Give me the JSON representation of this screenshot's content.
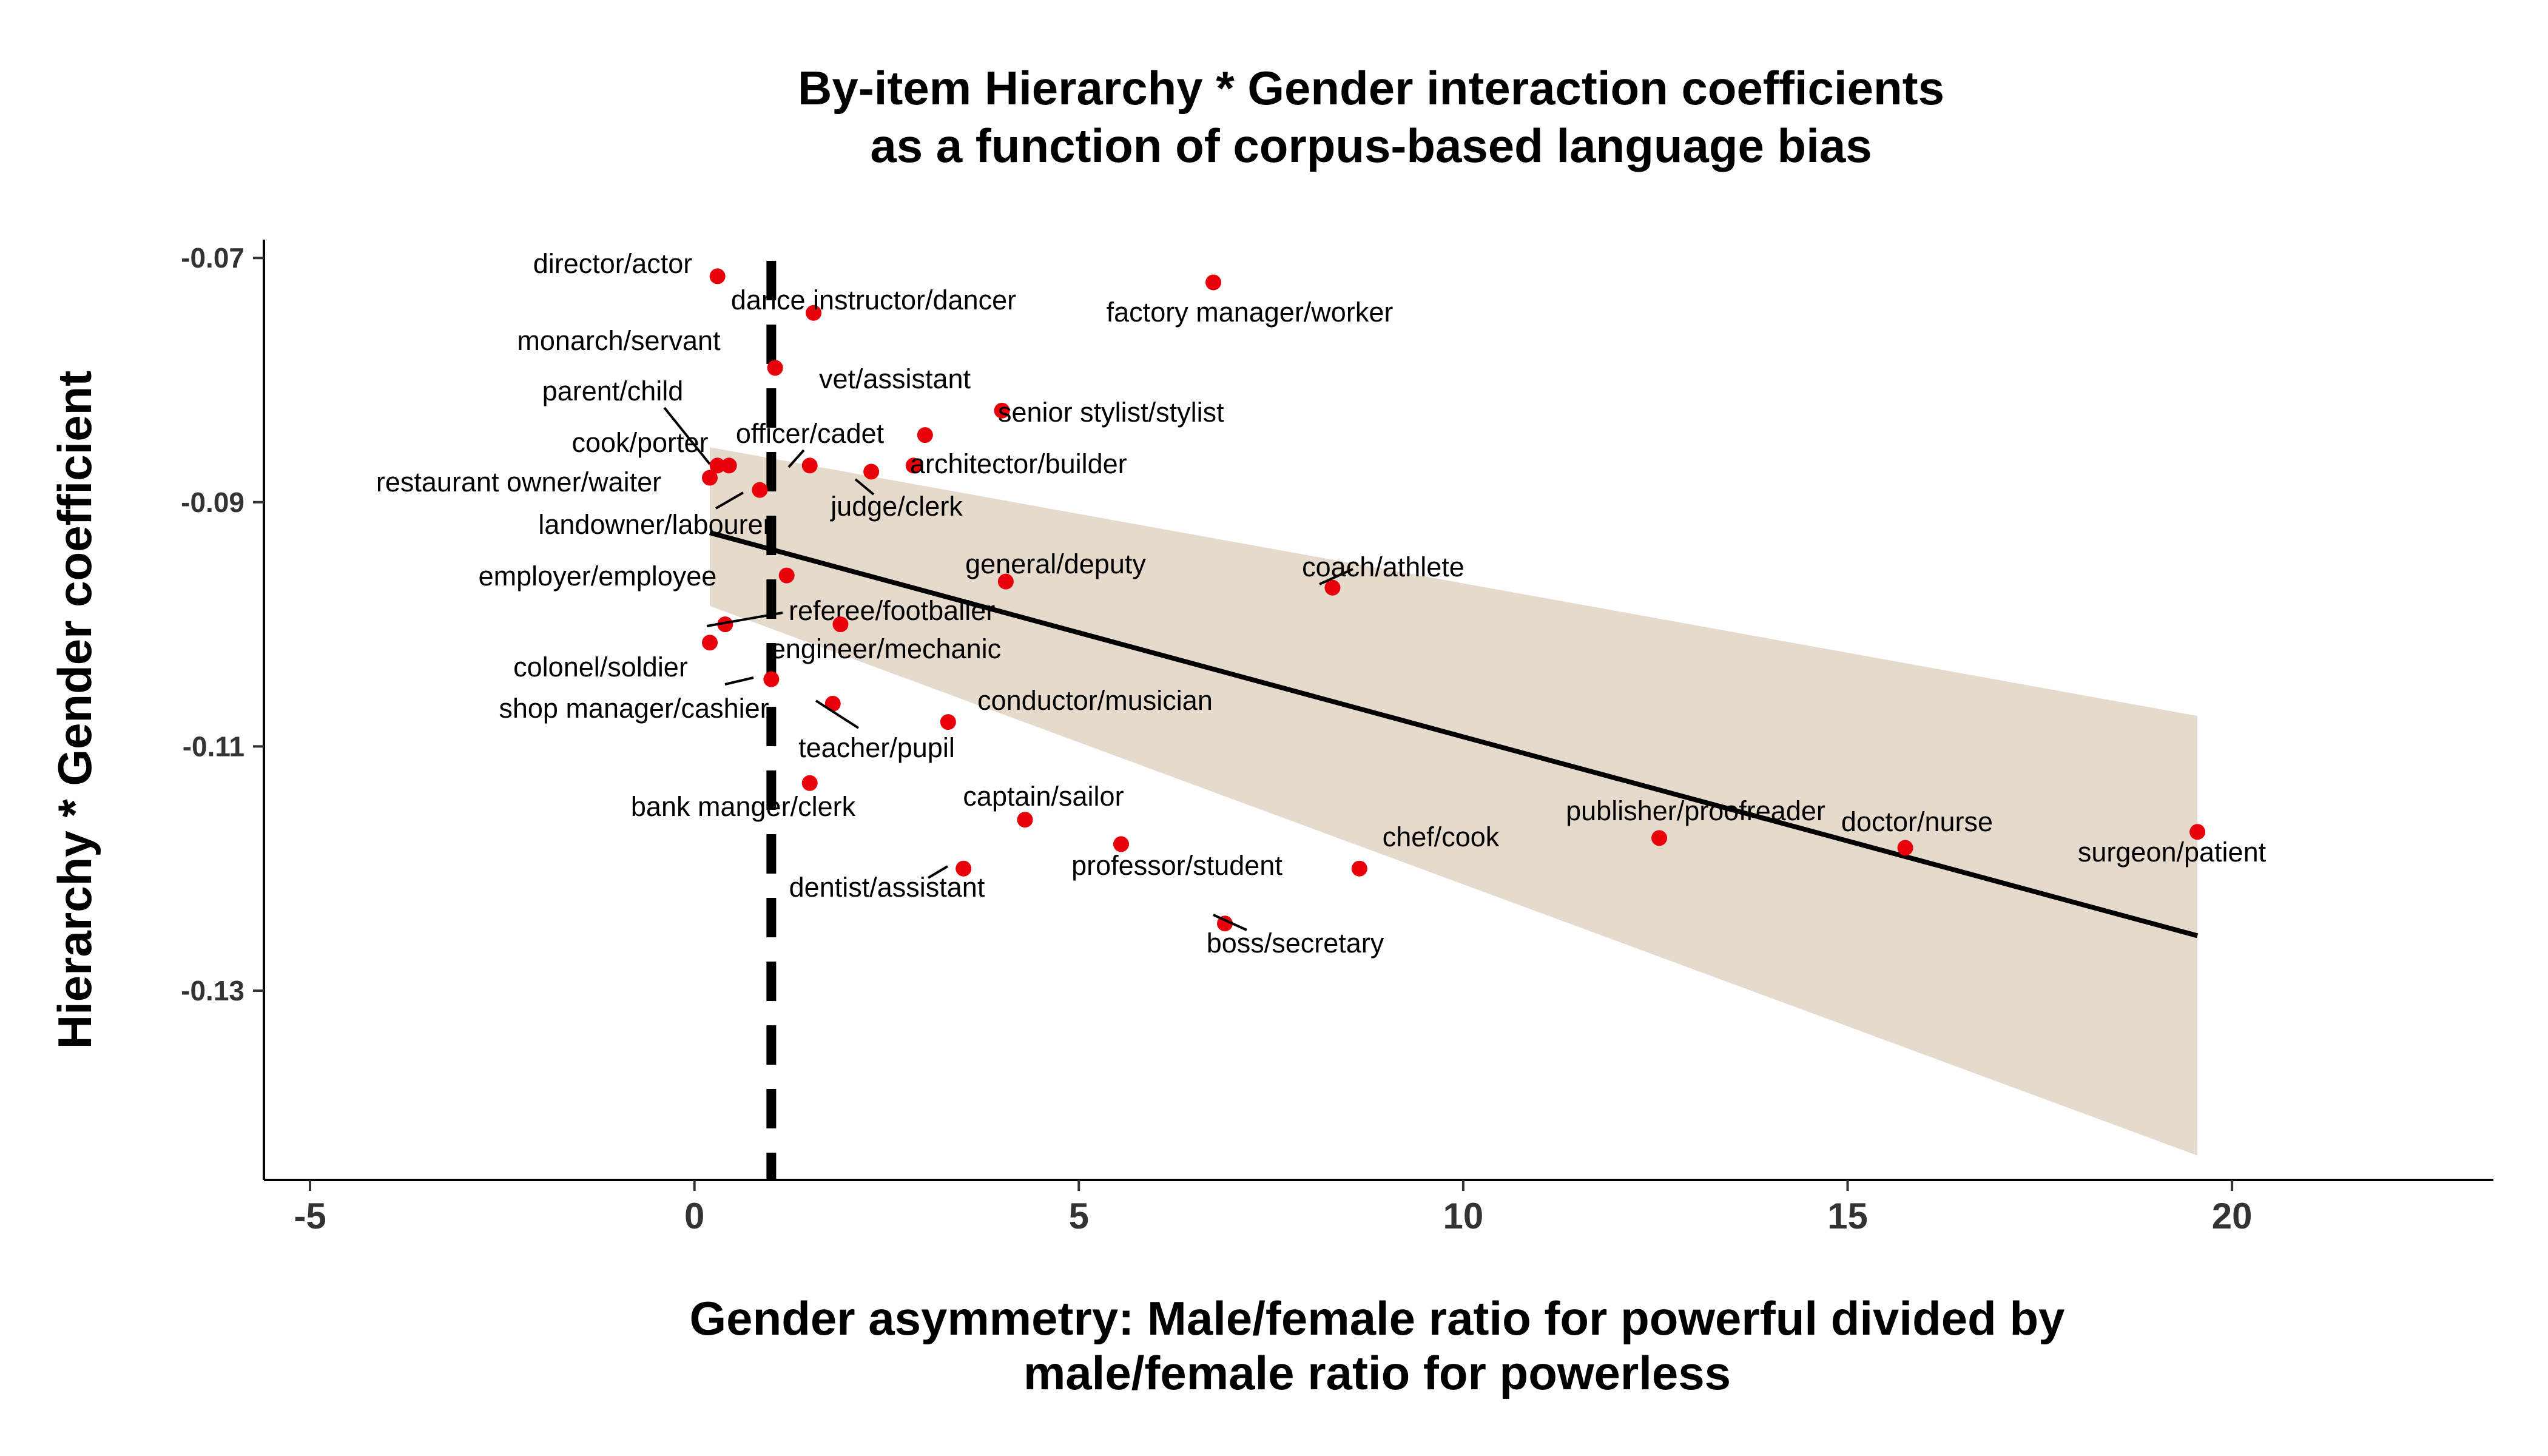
{
  "chart_data": {
    "type": "scatter",
    "title": [
      "By-item Hierarchy * Gender interaction coefficients",
      "as a function of corpus-based language bias"
    ],
    "xlabel": [
      "Gender asymmetry: Male/female ratio for powerful divided by",
      "male/female ratio for powerless"
    ],
    "ylabel": "Hierarchy * Gender coefficient",
    "xlim": [
      -5.6,
      23.4
    ],
    "ylim": [
      -0.1455,
      -0.0685
    ],
    "xticks": [
      -5,
      0,
      5,
      10,
      15,
      20
    ],
    "xtick_labels": [
      "-5",
      "0",
      "5",
      "10",
      "15",
      "20"
    ],
    "yticks": [
      -0.07,
      -0.09,
      -0.11,
      -0.13
    ],
    "ytick_labels": [
      "-0.07",
      "-0.09",
      "-0.11",
      "-0.13"
    ],
    "grid": false,
    "point_color": "#e8000b",
    "ribbon_color": "#e6dacd",
    "reference_line": {
      "x": 1,
      "style": "dashed",
      "color": "#000000"
    },
    "fit_line": {
      "x": [
        0.2,
        19.55
      ],
      "y": [
        -0.0925,
        -0.1255
      ],
      "color": "#000000"
    },
    "ribbon": {
      "x": [
        0.2,
        19.55
      ],
      "upper": [
        -0.0855,
        -0.1075
      ],
      "lower": [
        -0.0985,
        -0.1435
      ]
    },
    "points": [
      {
        "label": "director/actor",
        "x": 0.3,
        "y": -0.0715
      },
      {
        "label": "dance instructor/dancer",
        "x": 1.55,
        "y": -0.0745
      },
      {
        "label": "factory manager/worker",
        "x": 6.75,
        "y": -0.072
      },
      {
        "label": "monarch/servant",
        "x": 1.05,
        "y": -0.079
      },
      {
        "label": "vet/assistant",
        "x": 3.0,
        "y": -0.0845
      },
      {
        "label": "senior stylist/stylist",
        "x": 4.0,
        "y": -0.0825
      },
      {
        "label": "parent/child",
        "x": 0.45,
        "y": -0.087
      },
      {
        "label": "cook/porter",
        "x": 0.3,
        "y": -0.087
      },
      {
        "label": "officer/cadet",
        "x": 1.5,
        "y": -0.087
      },
      {
        "label": "architector/builder",
        "x": 2.85,
        "y": -0.087
      },
      {
        "label": "judge/clerk",
        "x": 2.3,
        "y": -0.0875
      },
      {
        "label": "restaurant owner/waiter",
        "x": 0.2,
        "y": -0.088
      },
      {
        "label": "landowner/labourer",
        "x": 0.85,
        "y": -0.089
      },
      {
        "label": "general/deputy",
        "x": 4.05,
        "y": -0.0965
      },
      {
        "label": "coach/athlete",
        "x": 8.3,
        "y": -0.097
      },
      {
        "label": "employer/employee",
        "x": 1.2,
        "y": -0.096
      },
      {
        "label": "referee/footballer",
        "x": 0.4,
        "y": -0.1
      },
      {
        "label": "engineer/mechanic",
        "x": 1.9,
        "y": -0.1
      },
      {
        "label": "colonel/soldier",
        "x": 0.2,
        "y": -0.1015
      },
      {
        "label": "shop manager/cashier",
        "x": 1.0,
        "y": -0.1045
      },
      {
        "label": "teacher/pupil",
        "x": 1.8,
        "y": -0.1065
      },
      {
        "label": "conductor/musician",
        "x": 3.3,
        "y": -0.108
      },
      {
        "label": "bank manger/clerk",
        "x": 1.5,
        "y": -0.113
      },
      {
        "label": "captain/sailor",
        "x": 4.3,
        "y": -0.116
      },
      {
        "label": "professor/student",
        "x": 5.55,
        "y": -0.118
      },
      {
        "label": "publisher/proofreader",
        "x": 12.55,
        "y": -0.1175
      },
      {
        "label": "doctor/nurse",
        "x": 15.75,
        "y": -0.1183
      },
      {
        "label": "surgeon/patient",
        "x": 19.55,
        "y": -0.117
      },
      {
        "label": "chef/cook",
        "x": 8.65,
        "y": -0.12
      },
      {
        "label": "dentist/assistant",
        "x": 3.5,
        "y": -0.12
      },
      {
        "label": "boss/secretary",
        "x": 6.9,
        "y": -0.1245
      }
    ]
  }
}
